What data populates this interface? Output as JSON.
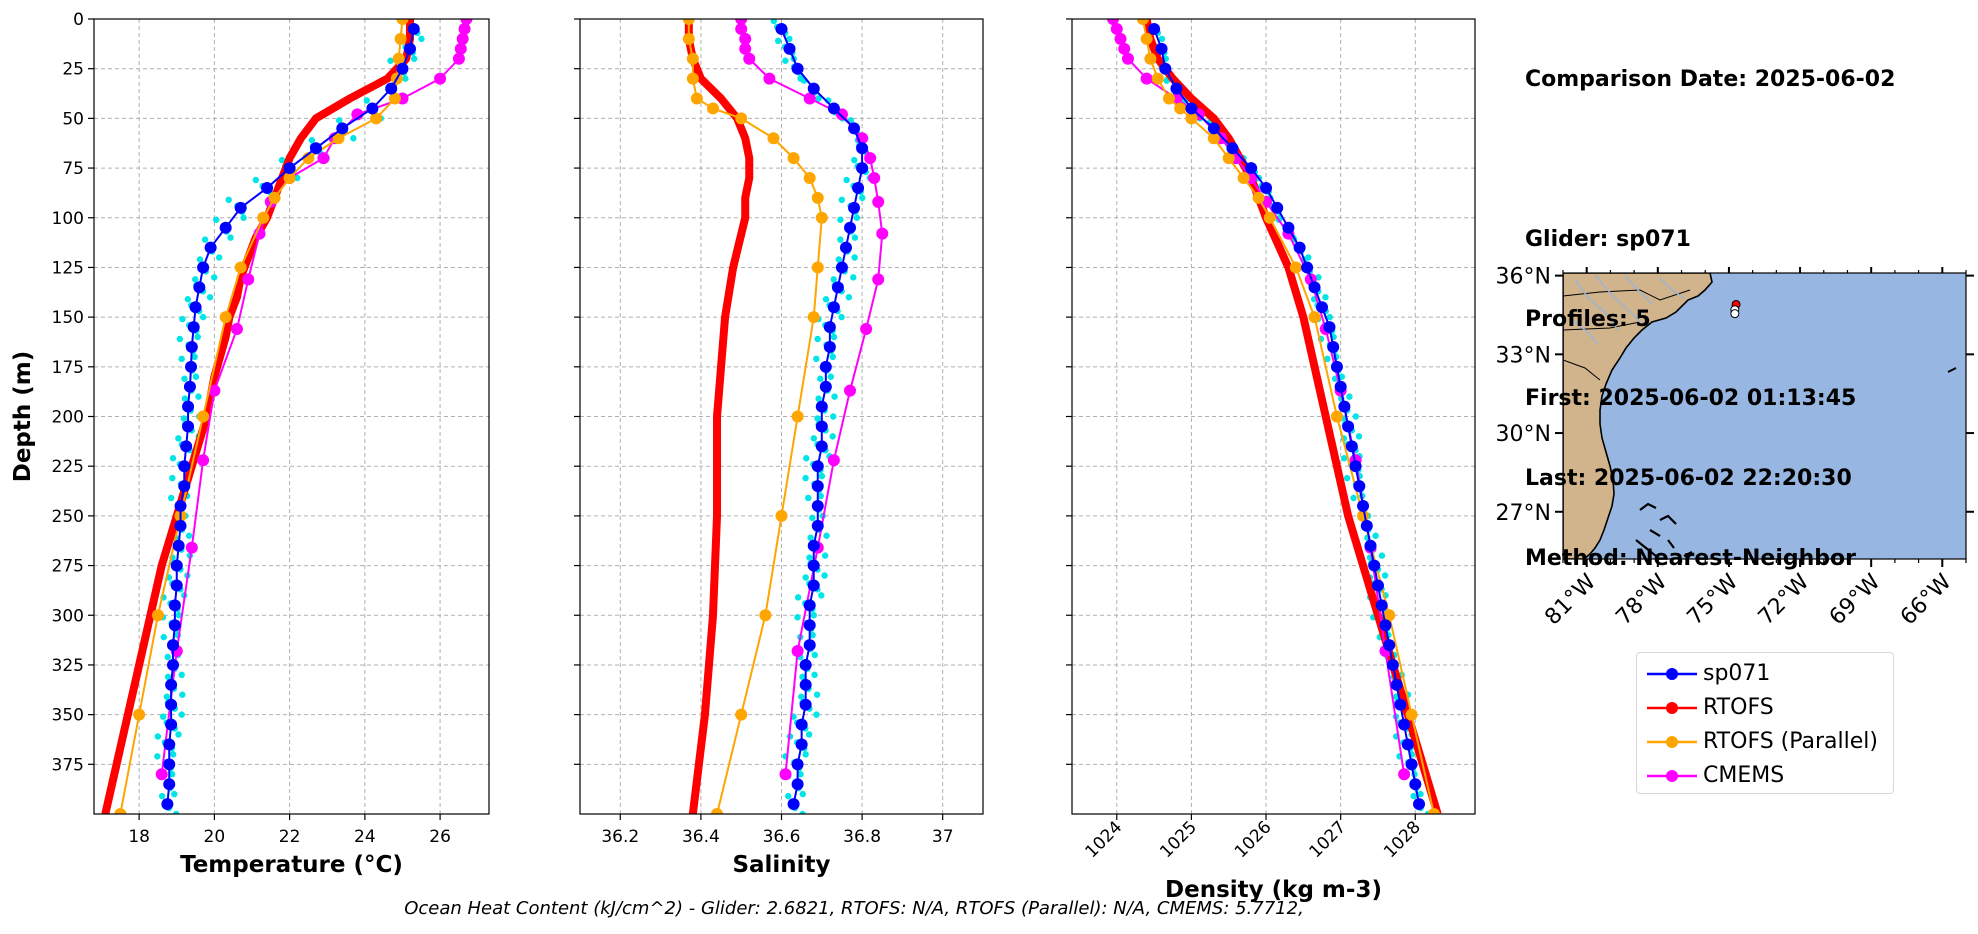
{
  "info": {
    "comparison_date": "Comparison Date: 2025-06-02",
    "glider": "Glider: sp071",
    "profiles": "Profiles: 5",
    "first": "First: 2025-06-02 01:13:45",
    "last": "Last: 2025-06-02 22:20:30",
    "method": "Method: Nearest-Neighbor"
  },
  "footer": "Ocean Heat Content (kJ/cm^2) - Glider: 2.6821,  RTOFS: N/A,  RTOFS (Parallel): N/A,  CMEMS: 5.7712,",
  "colors": {
    "glider": "#0000ff",
    "glider_profiles": "#00e5e5",
    "rtofs": "#ff0000",
    "rtofs_parallel": "#ffa500",
    "cmems": "#ff00ff",
    "ocean": "#97b6e1",
    "land": "#d2b48c"
  },
  "legend": [
    {
      "label": "sp071",
      "color": "#0000ff"
    },
    {
      "label": "RTOFS",
      "color": "#ff0000"
    },
    {
      "label": "RTOFS (Parallel)",
      "color": "#ffa500"
    },
    {
      "label": "CMEMS",
      "color": "#ff00ff"
    }
  ],
  "chart_data": [
    {
      "type": "line",
      "xlabel": "Temperature (°C)",
      "ylabel": "Depth (m)",
      "xlim": [
        16.8,
        27.3
      ],
      "ylim": [
        400,
        0
      ],
      "xticks": [
        18,
        20,
        22,
        24,
        26
      ],
      "yticks": [
        0,
        25,
        50,
        75,
        100,
        125,
        150,
        175,
        200,
        225,
        250,
        275,
        300,
        325,
        350,
        375
      ],
      "grid": true,
      "series": [
        {
          "name": "sp071",
          "depth": [
            5,
            15,
            25,
            35,
            45,
            55,
            65,
            75,
            85,
            95,
            105,
            115,
            125,
            135,
            145,
            155,
            165,
            175,
            185,
            195,
            205,
            215,
            225,
            235,
            245,
            255,
            265,
            275,
            285,
            295,
            305,
            315,
            325,
            335,
            345,
            355,
            365,
            375,
            385,
            395
          ],
          "values": [
            25.3,
            25.2,
            25.0,
            24.7,
            24.2,
            23.4,
            22.7,
            22.0,
            21.4,
            20.7,
            20.3,
            19.9,
            19.7,
            19.6,
            19.5,
            19.45,
            19.4,
            19.38,
            19.35,
            19.3,
            19.3,
            19.25,
            19.2,
            19.2,
            19.1,
            19.1,
            19.05,
            19.0,
            19.0,
            18.95,
            18.95,
            18.9,
            18.9,
            18.85,
            18.85,
            18.85,
            18.8,
            18.8,
            18.8,
            18.75
          ]
        },
        {
          "name": "RTOFS",
          "depth": [
            0,
            10,
            20,
            30,
            40,
            50,
            60,
            70,
            80,
            90,
            100,
            110,
            120,
            130,
            140,
            150,
            160,
            170,
            180,
            190,
            200,
            225,
            250,
            275,
            300,
            325,
            350,
            375,
            400
          ],
          "values": [
            25.2,
            25.2,
            25.1,
            24.6,
            23.6,
            22.7,
            22.3,
            22.0,
            21.8,
            21.6,
            21.4,
            21.1,
            20.9,
            20.7,
            20.6,
            20.4,
            20.3,
            20.15,
            20.0,
            19.9,
            19.8,
            19.4,
            19.0,
            18.6,
            18.3,
            18.0,
            17.7,
            17.4,
            17.1
          ]
        },
        {
          "name": "RTOFS (Parallel)",
          "depth": [
            0,
            10,
            20,
            30,
            40,
            50,
            60,
            70,
            80,
            90,
            100,
            125,
            150,
            200,
            250,
            300,
            350,
            400
          ],
          "values": [
            25.0,
            24.95,
            24.9,
            24.85,
            24.8,
            24.3,
            23.3,
            22.5,
            22.0,
            21.6,
            21.3,
            20.7,
            20.3,
            19.7,
            19.1,
            18.5,
            18.0,
            17.5
          ]
        },
        {
          "name": "CMEMS",
          "depth": [
            0,
            5,
            10,
            15,
            20,
            30,
            40,
            48,
            60,
            70,
            80,
            92,
            108,
            131,
            156,
            187,
            222,
            266,
            318,
            380
          ],
          "values": [
            26.7,
            26.65,
            26.6,
            26.55,
            26.5,
            26.0,
            25.0,
            23.8,
            23.2,
            22.9,
            22.0,
            21.5,
            21.2,
            20.9,
            20.6,
            20.0,
            19.7,
            19.4,
            19.0,
            18.6
          ]
        }
      ]
    },
    {
      "type": "line",
      "xlabel": "Salinity",
      "xlim": [
        36.1,
        37.1
      ],
      "ylim": [
        400,
        0
      ],
      "xticks": [
        36.2,
        36.4,
        36.6,
        36.8,
        37.0
      ],
      "grid": true,
      "series": [
        {
          "name": "sp071",
          "depth": [
            5,
            15,
            25,
            35,
            45,
            55,
            65,
            75,
            85,
            95,
            105,
            115,
            125,
            135,
            145,
            155,
            165,
            175,
            185,
            195,
            205,
            215,
            225,
            235,
            245,
            255,
            265,
            275,
            285,
            295,
            305,
            315,
            325,
            335,
            345,
            355,
            365,
            375,
            385,
            395
          ],
          "values": [
            36.6,
            36.62,
            36.64,
            36.68,
            36.73,
            36.78,
            36.8,
            36.8,
            36.79,
            36.78,
            36.77,
            36.76,
            36.75,
            36.74,
            36.73,
            36.72,
            36.72,
            36.71,
            36.71,
            36.7,
            36.7,
            36.7,
            36.69,
            36.69,
            36.69,
            36.69,
            36.68,
            36.68,
            36.68,
            36.67,
            36.67,
            36.67,
            36.66,
            36.66,
            36.66,
            36.65,
            36.65,
            36.64,
            36.64,
            36.63
          ]
        },
        {
          "name": "RTOFS",
          "depth": [
            0,
            10,
            20,
            30,
            40,
            50,
            60,
            70,
            80,
            90,
            100,
            125,
            150,
            200,
            250,
            300,
            350,
            400
          ],
          "values": [
            36.37,
            36.37,
            36.38,
            36.4,
            36.45,
            36.49,
            36.51,
            36.52,
            36.52,
            36.51,
            36.51,
            36.48,
            36.46,
            36.44,
            36.44,
            36.43,
            36.41,
            36.38
          ]
        },
        {
          "name": "RTOFS (Parallel)",
          "depth": [
            0,
            10,
            20,
            30,
            40,
            45,
            50,
            60,
            70,
            80,
            90,
            100,
            125,
            150,
            200,
            250,
            300,
            350,
            400
          ],
          "values": [
            36.37,
            36.37,
            36.38,
            36.38,
            36.39,
            36.43,
            36.5,
            36.58,
            36.63,
            36.67,
            36.69,
            36.7,
            36.69,
            36.68,
            36.64,
            36.6,
            36.56,
            36.5,
            36.44
          ]
        },
        {
          "name": "CMEMS",
          "depth": [
            0,
            5,
            10,
            15,
            20,
            30,
            40,
            48,
            60,
            70,
            80,
            92,
            108,
            131,
            156,
            187,
            222,
            266,
            318,
            380
          ],
          "values": [
            36.5,
            36.5,
            36.51,
            36.51,
            36.52,
            36.57,
            36.67,
            36.75,
            36.8,
            36.82,
            36.83,
            36.84,
            36.85,
            36.84,
            36.81,
            36.77,
            36.73,
            36.69,
            36.64,
            36.61
          ]
        }
      ]
    },
    {
      "type": "line",
      "xlabel": "Density (kg m-3)",
      "xlim": [
        1023.4,
        1028.8
      ],
      "ylim": [
        400,
        0
      ],
      "xticks": [
        1024,
        1025,
        1026,
        1027,
        1028
      ],
      "grid": true,
      "series": [
        {
          "name": "sp071",
          "depth": [
            5,
            15,
            25,
            35,
            45,
            55,
            65,
            75,
            85,
            95,
            105,
            115,
            125,
            135,
            145,
            155,
            165,
            175,
            185,
            195,
            205,
            215,
            225,
            235,
            245,
            255,
            265,
            275,
            285,
            295,
            305,
            315,
            325,
            335,
            345,
            355,
            365,
            375,
            385,
            395
          ],
          "values": [
            1024.5,
            1024.6,
            1024.65,
            1024.8,
            1025.0,
            1025.3,
            1025.55,
            1025.8,
            1026.0,
            1026.15,
            1026.3,
            1026.45,
            1026.55,
            1026.65,
            1026.75,
            1026.85,
            1026.9,
            1026.95,
            1027.0,
            1027.05,
            1027.1,
            1027.15,
            1027.2,
            1027.25,
            1027.3,
            1027.35,
            1027.4,
            1027.45,
            1027.5,
            1027.55,
            1027.6,
            1027.65,
            1027.7,
            1027.75,
            1027.8,
            1027.85,
            1027.9,
            1027.95,
            1028.0,
            1028.05
          ]
        },
        {
          "name": "RTOFS",
          "depth": [
            0,
            10,
            20,
            30,
            40,
            50,
            60,
            70,
            80,
            90,
            100,
            125,
            150,
            200,
            250,
            300,
            350,
            400
          ],
          "values": [
            1024.4,
            1024.45,
            1024.55,
            1024.75,
            1025.0,
            1025.3,
            1025.5,
            1025.65,
            1025.8,
            1025.9,
            1026.0,
            1026.3,
            1026.5,
            1026.8,
            1027.1,
            1027.5,
            1027.9,
            1028.3
          ]
        },
        {
          "name": "RTOFS (Parallel)",
          "depth": [
            0,
            10,
            20,
            30,
            40,
            45,
            50,
            60,
            70,
            80,
            90,
            100,
            125,
            150,
            200,
            250,
            300,
            350,
            400
          ],
          "values": [
            1024.35,
            1024.4,
            1024.45,
            1024.55,
            1024.7,
            1024.85,
            1025.0,
            1025.3,
            1025.5,
            1025.7,
            1025.9,
            1026.05,
            1026.4,
            1026.65,
            1026.95,
            1027.3,
            1027.65,
            1027.95,
            1028.25
          ]
        },
        {
          "name": "CMEMS",
          "depth": [
            0,
            5,
            10,
            15,
            20,
            30,
            40,
            48,
            60,
            70,
            80,
            92,
            108,
            131,
            156,
            187,
            222,
            266,
            318,
            380
          ],
          "values": [
            1023.95,
            1024.0,
            1024.05,
            1024.1,
            1024.15,
            1024.4,
            1024.8,
            1025.1,
            1025.4,
            1025.6,
            1025.8,
            1026.0,
            1026.3,
            1026.6,
            1026.8,
            1027.0,
            1027.2,
            1027.4,
            1027.6,
            1027.85
          ]
        }
      ]
    },
    {
      "type": "map",
      "lon_ticks": [
        "81°W",
        "78°W",
        "75°W",
        "72°W",
        "69°W",
        "66°W"
      ],
      "lat_ticks": [
        "36°N",
        "33°N",
        "30°N",
        "27°N"
      ],
      "extent_lon": [
        -82,
        -65
      ],
      "extent_lat": [
        25.2,
        36.1
      ],
      "glider_positions": [
        [
          -74.7,
          34.9
        ],
        [
          -74.75,
          34.7
        ],
        [
          -74.75,
          34.55
        ]
      ]
    }
  ]
}
